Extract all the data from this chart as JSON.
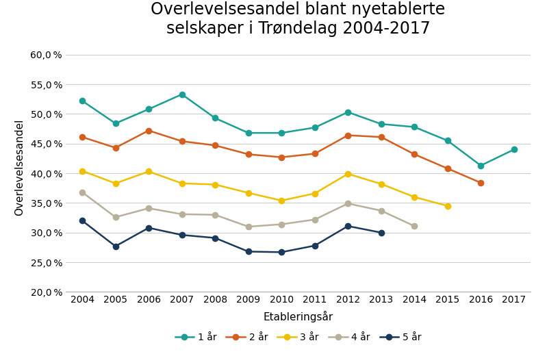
{
  "title": "Overlevelsesandel blant nyetablerte\nselskaper i Trøndelag 2004-2017",
  "xlabel": "Etableringsår",
  "ylabel": "Overlevelsesandel",
  "years": [
    2004,
    2005,
    2006,
    2007,
    2008,
    2009,
    2010,
    2011,
    2012,
    2013,
    2014,
    2015,
    2016,
    2017
  ],
  "series": {
    "1 år": {
      "values": [
        0.522,
        0.484,
        0.508,
        0.533,
        0.493,
        0.468,
        0.468,
        0.477,
        0.503,
        0.483,
        0.478,
        0.455,
        0.413,
        0.44
      ],
      "color": "#1a9e96",
      "marker": "o"
    },
    "2 år": {
      "values": [
        0.461,
        0.443,
        0.472,
        0.454,
        0.447,
        0.432,
        0.427,
        0.433,
        0.464,
        0.461,
        0.432,
        0.408,
        0.384,
        null
      ],
      "color": "#d45f1e",
      "marker": "o"
    },
    "3 år": {
      "values": [
        0.404,
        0.383,
        0.403,
        0.383,
        0.381,
        0.367,
        0.354,
        0.366,
        0.399,
        0.382,
        0.36,
        0.345,
        null,
        null
      ],
      "color": "#f0c000",
      "marker": "o"
    },
    "4 år": {
      "values": [
        0.368,
        0.326,
        0.341,
        0.331,
        0.33,
        0.31,
        0.314,
        0.322,
        0.349,
        0.337,
        0.311,
        null,
        null,
        null
      ],
      "color": "#b8b09a",
      "marker": "o"
    },
    "5 år": {
      "values": [
        0.32,
        0.277,
        0.308,
        0.296,
        0.291,
        0.268,
        0.267,
        0.278,
        0.311,
        0.3,
        null,
        null,
        null,
        null
      ],
      "color": "#1a3a5c",
      "marker": "o"
    }
  },
  "ylim": [
    0.2,
    0.62
  ],
  "yticks": [
    0.2,
    0.25,
    0.3,
    0.35,
    0.4,
    0.45,
    0.5,
    0.55,
    0.6
  ],
  "background_color": "#ffffff",
  "grid_color": "#cccccc",
  "title_fontsize": 17,
  "label_fontsize": 11,
  "tick_fontsize": 10,
  "legend_fontsize": 10
}
